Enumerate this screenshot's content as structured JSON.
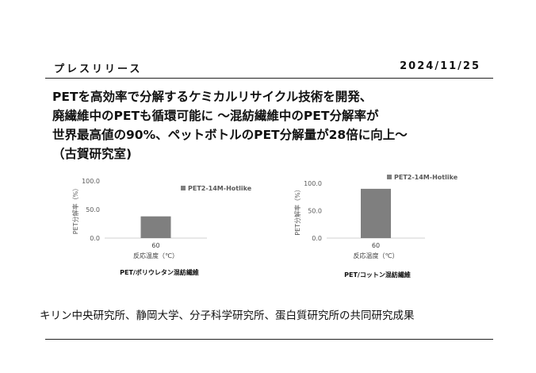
{
  "header": {
    "label": "プレスリリース",
    "date": "2024/11/25"
  },
  "title": {
    "lines": [
      "PETを高効率で分解するケミカルリサイクル技術を開発、",
      "廃繊維中のPETも循環可能に 〜混紡繊維中のPET分解率が",
      "世界最高値の90%、ペットボトルのPET分解量が28倍に向上〜",
      "（古賀研究室)"
    ]
  },
  "chart_data": [
    {
      "type": "bar",
      "categories": [
        "60"
      ],
      "series": [
        {
          "name": "PET2-14M-Hotlike",
          "values": [
            38
          ]
        }
      ],
      "xlabel": "反応温度（℃）",
      "ylabel": "PET分解率（%）",
      "yticks": [
        "0.0",
        "50.0",
        "100.0"
      ],
      "ylim": [
        0,
        100
      ],
      "legend": "top-right",
      "bar_color": "#7f7f7f",
      "caption": "PET/ポリウレタン混紡繊維"
    },
    {
      "type": "bar",
      "categories": [
        "60"
      ],
      "series": [
        {
          "name": "PET2-14M-Hotlike",
          "values": [
            90
          ]
        }
      ],
      "xlabel": "反応温度（℃）",
      "ylabel": "PET分解率（%）",
      "yticks": [
        "0.0",
        "50.0",
        "100.0"
      ],
      "ylim": [
        0,
        100
      ],
      "legend": "top-right",
      "bar_color": "#7f7f7f",
      "caption": "PET/コットン混紡繊維"
    }
  ],
  "footer": {
    "text": "キリン中央研究所、静岡大学、分子科学研究所、蛋白質研究所の共同研究成果"
  }
}
